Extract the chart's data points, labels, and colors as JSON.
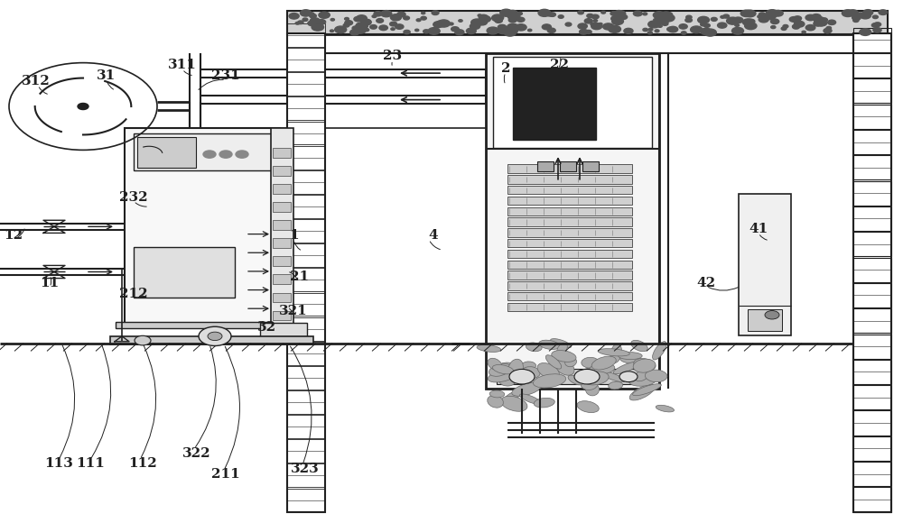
{
  "bg_color": "#ffffff",
  "line_color": "#404040",
  "dark_color": "#202020",
  "fig_width": 10.0,
  "fig_height": 5.9
}
